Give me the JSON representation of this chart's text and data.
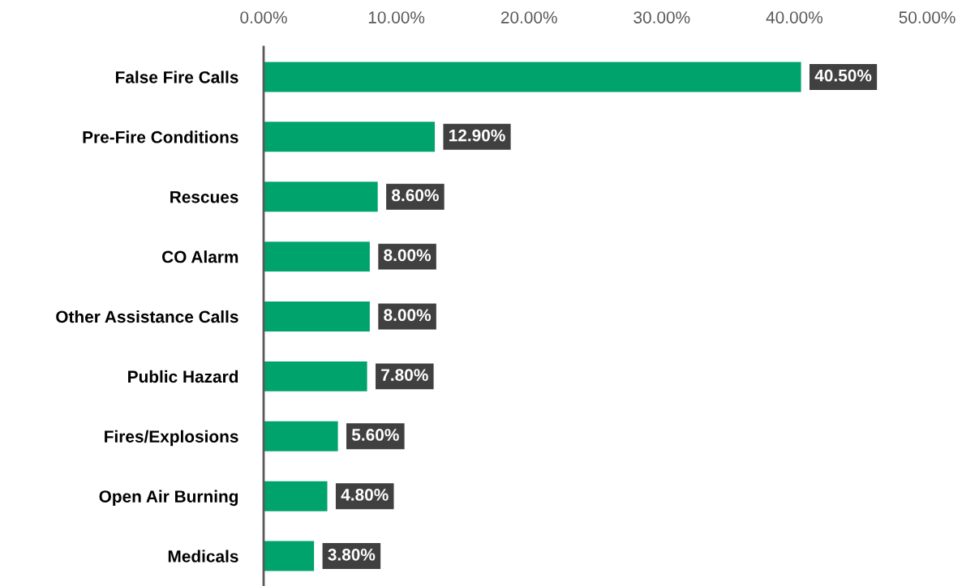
{
  "chart_data": {
    "type": "bar",
    "orientation": "horizontal",
    "categories": [
      "False Fire Calls",
      "Pre-Fire Conditions",
      "Rescues",
      "CO Alarm",
      "Other Assistance Calls",
      "Public Hazard",
      "Fires/Explosions",
      "Open Air Burning",
      "Medicals"
    ],
    "values": [
      40.5,
      12.9,
      8.6,
      8.0,
      8.0,
      7.8,
      5.6,
      4.8,
      3.8
    ],
    "value_labels": [
      "40.50%",
      "12.90%",
      "8.60%",
      "8.00%",
      "8.00%",
      "7.80%",
      "5.60%",
      "4.80%",
      "3.80%"
    ],
    "color": "#00a36c",
    "xlim": [
      0,
      50
    ],
    "xticks": [
      {
        "value": 0,
        "label": "0.00%"
      },
      {
        "value": 10,
        "label": "10.00%"
      },
      {
        "value": 20,
        "label": "20.00%"
      },
      {
        "value": 30,
        "label": "30.00%"
      },
      {
        "value": 40,
        "label": "40.00%"
      },
      {
        "value": 50,
        "label": "50.00%"
      }
    ],
    "grid": false,
    "legend": false
  }
}
